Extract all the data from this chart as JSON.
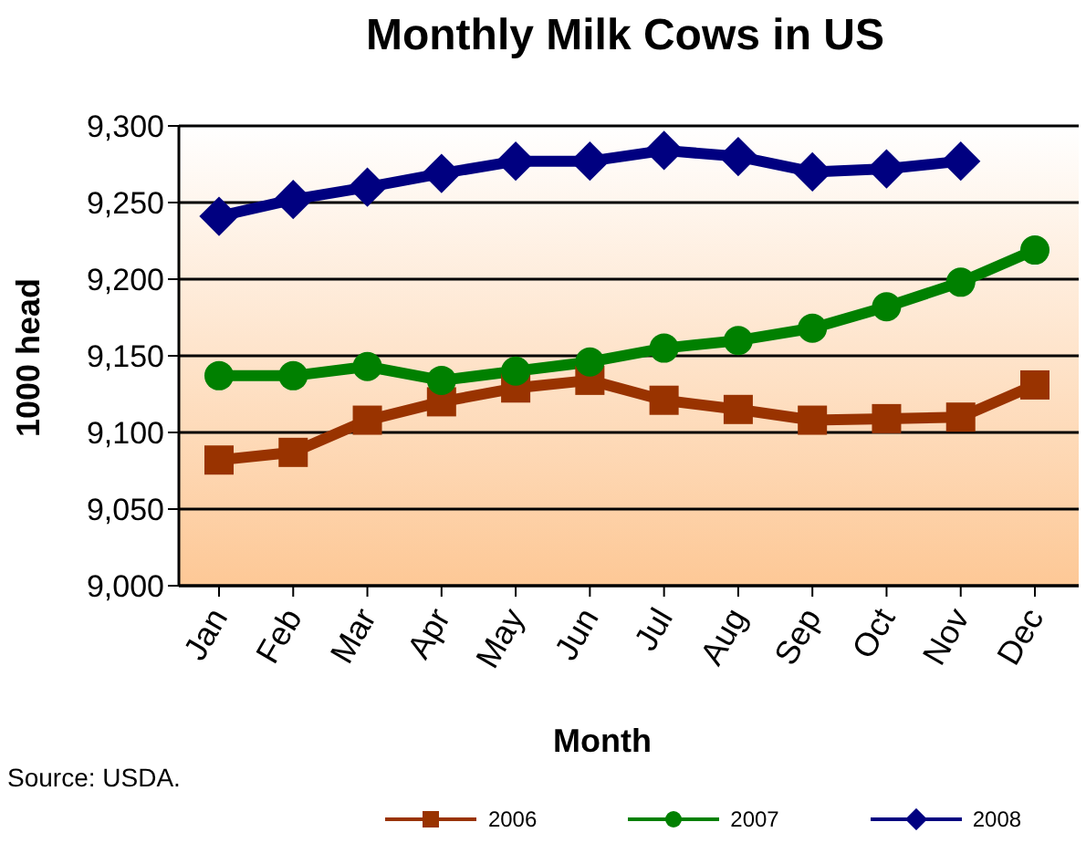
{
  "chart_data": {
    "type": "line",
    "title": "Monthly Milk Cows in US",
    "xlabel": "Month",
    "ylabel": "1000 head",
    "annotations": [
      "Source: USDA."
    ],
    "categories": [
      "Jan",
      "Feb",
      "Mar",
      "Apr",
      "May",
      "Jun",
      "Jul",
      "Aug",
      "Sep",
      "Oct",
      "Nov",
      "Dec"
    ],
    "series": [
      {
        "name": "2006",
        "color": "#993300",
        "marker": "square",
        "values": [
          9082,
          9087,
          9108,
          9120,
          9129,
          9134,
          9121,
          9115,
          9108,
          9109,
          9110,
          9131
        ]
      },
      {
        "name": "2007",
        "color": "#008000",
        "marker": "circle",
        "values": [
          9137,
          9137,
          9143,
          9134,
          9140,
          9146,
          9155,
          9160,
          9168,
          9182,
          9198,
          9219
        ]
      },
      {
        "name": "2008",
        "color": "#000080",
        "marker": "diamond",
        "values": [
          9241,
          9252,
          9260,
          9269,
          9277,
          9277,
          9284,
          9280,
          9270,
          9272,
          9277,
          null
        ]
      }
    ],
    "ylim": [
      9000,
      9300
    ],
    "yticks": [
      {
        "value": 9000,
        "label": "9,000"
      },
      {
        "value": 9050,
        "label": "9,050"
      },
      {
        "value": 9100,
        "label": "9,100"
      },
      {
        "value": 9150,
        "label": "9,150"
      },
      {
        "value": 9200,
        "label": "9,200"
      },
      {
        "value": 9250,
        "label": "9,250"
      },
      {
        "value": 9300,
        "label": "9,300"
      }
    ],
    "grid": "y",
    "legend": "bottom",
    "line_style": "solid"
  }
}
